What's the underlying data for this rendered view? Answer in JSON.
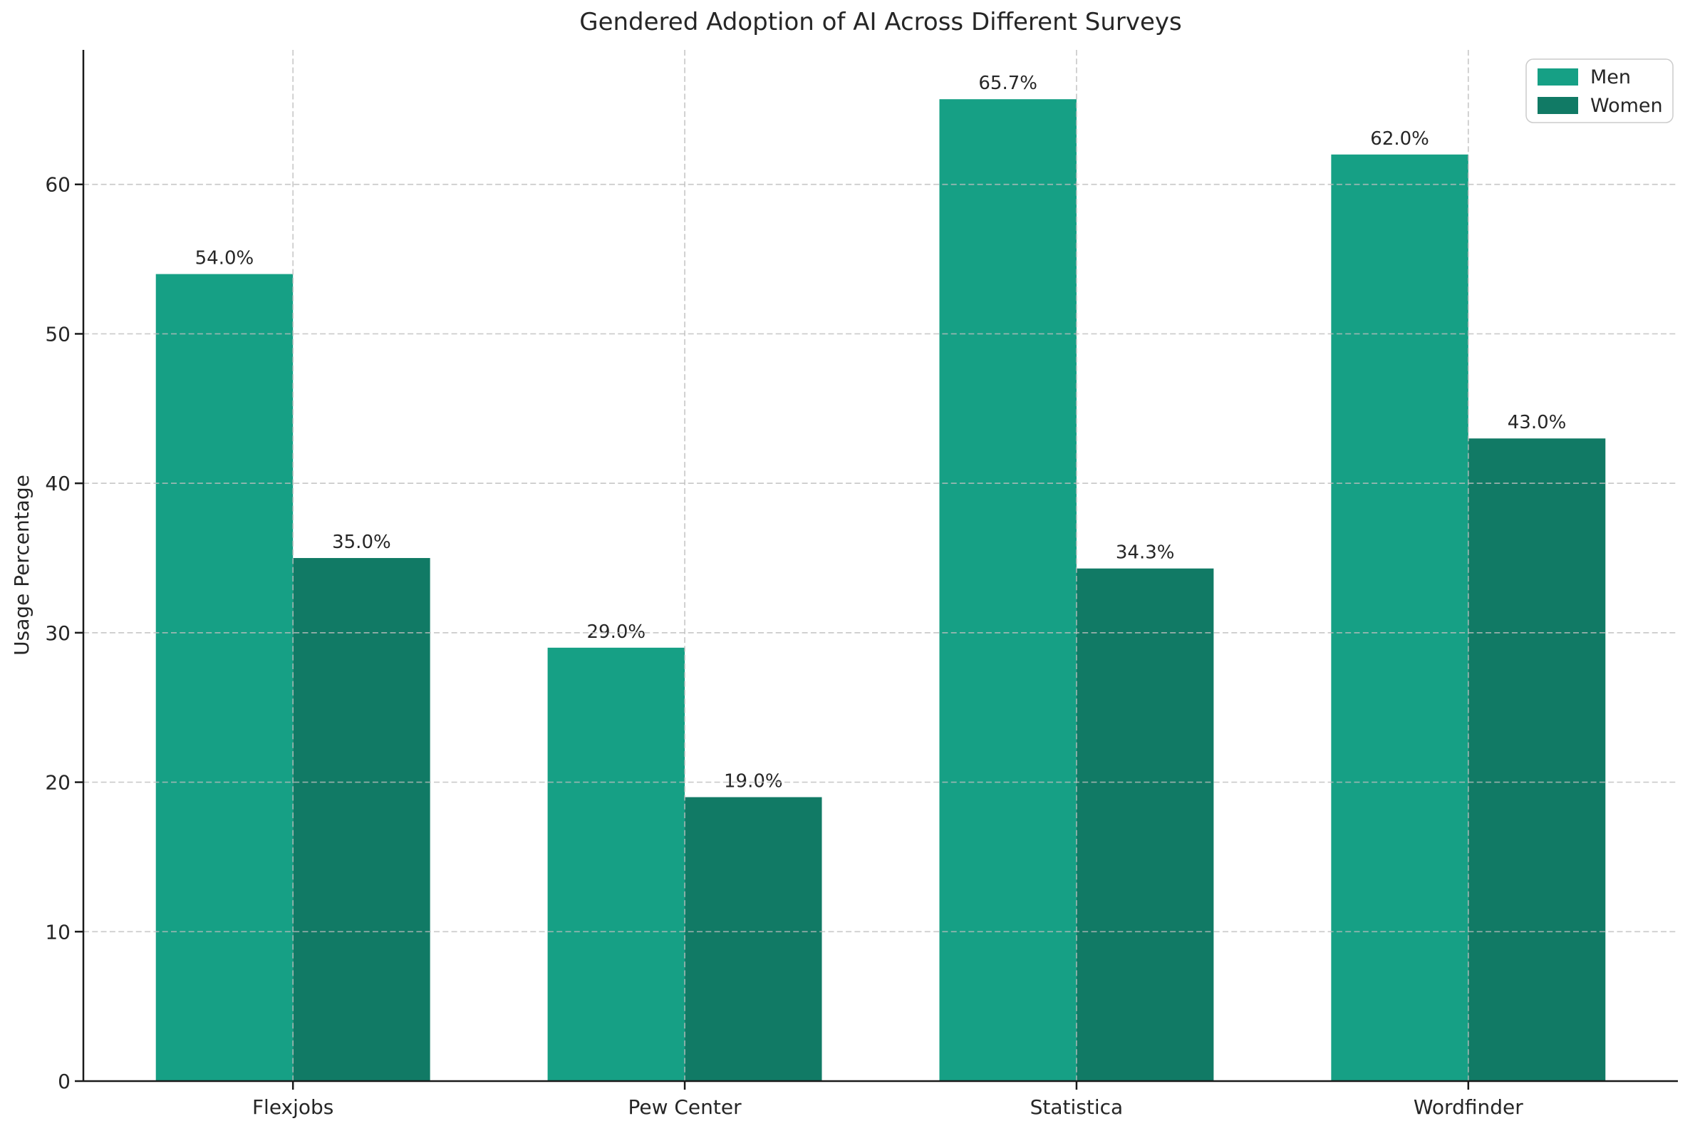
{
  "chart_data": {
    "type": "bar",
    "title": "Gendered Adoption of AI Across Different Surveys",
    "xlabel": "",
    "ylabel": "Usage Percentage",
    "categories": [
      "Flexjobs",
      "Pew Center",
      "Statistica",
      "Wordfinder"
    ],
    "series": [
      {
        "name": "Men",
        "color": "#16a085",
        "values": [
          54.0,
          29.0,
          65.7,
          62.0
        ],
        "bar_labels": [
          "54.0%",
          "29.0%",
          "65.7%",
          "62.0%"
        ]
      },
      {
        "name": "Women",
        "color": "#117a65",
        "values": [
          35.0,
          19.0,
          34.3,
          43.0
        ],
        "bar_labels": [
          "35.0%",
          "19.0%",
          "34.3%",
          "43.0%"
        ]
      }
    ],
    "ylim": [
      0,
      69
    ],
    "yticks": [
      0,
      10,
      20,
      30,
      40,
      50,
      60
    ],
    "grid": {
      "horizontal": true,
      "vertical": true,
      "style": "dashed",
      "drawn_over_bars": true
    },
    "legend": {
      "position": "upper right",
      "entries": [
        "Men",
        "Women"
      ]
    }
  },
  "style": {
    "background": "#ffffff",
    "text_color": "#262626",
    "axis_color": "#1a1a1a",
    "grid_color": "#bdbdbd",
    "legend_border": "#cccccc",
    "men_color": "#16a085",
    "women_color": "#117a65"
  }
}
